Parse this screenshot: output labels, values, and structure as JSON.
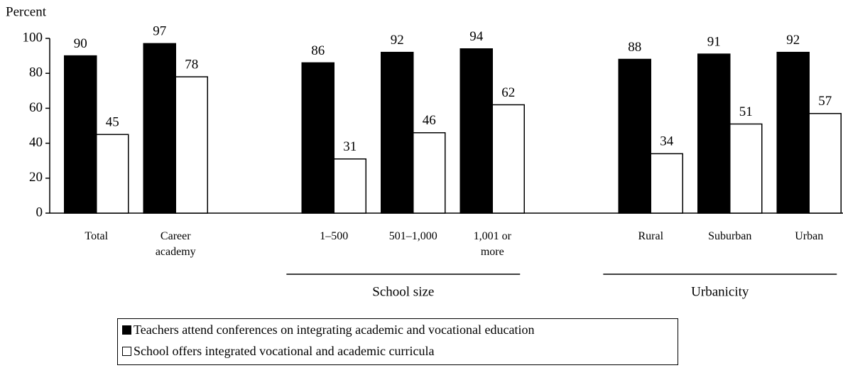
{
  "chart_data": {
    "type": "bar",
    "y_label": "Percent",
    "categories": [
      "Total",
      "Career academy",
      null,
      "1–500",
      "501–1,000",
      "1,001 or more",
      null,
      "Rural",
      "Suburban",
      "Urban"
    ],
    "groups": [
      null,
      "School size",
      "Urbanicity"
    ],
    "series": [
      {
        "name": "Teachers attend conferences on integrating academic and vocational education",
        "color": "#000000",
        "values": [
          90,
          97,
          null,
          86,
          92,
          94,
          null,
          88,
          91,
          92
        ]
      },
      {
        "name": "School offers integrated vocational and academic curricula",
        "color": "#ffffff",
        "values": [
          45,
          78,
          null,
          31,
          46,
          62,
          null,
          34,
          51,
          57
        ]
      }
    ],
    "ylim": [
      0,
      100
    ],
    "yticks": [
      0,
      20,
      40,
      60,
      80,
      100
    ]
  }
}
